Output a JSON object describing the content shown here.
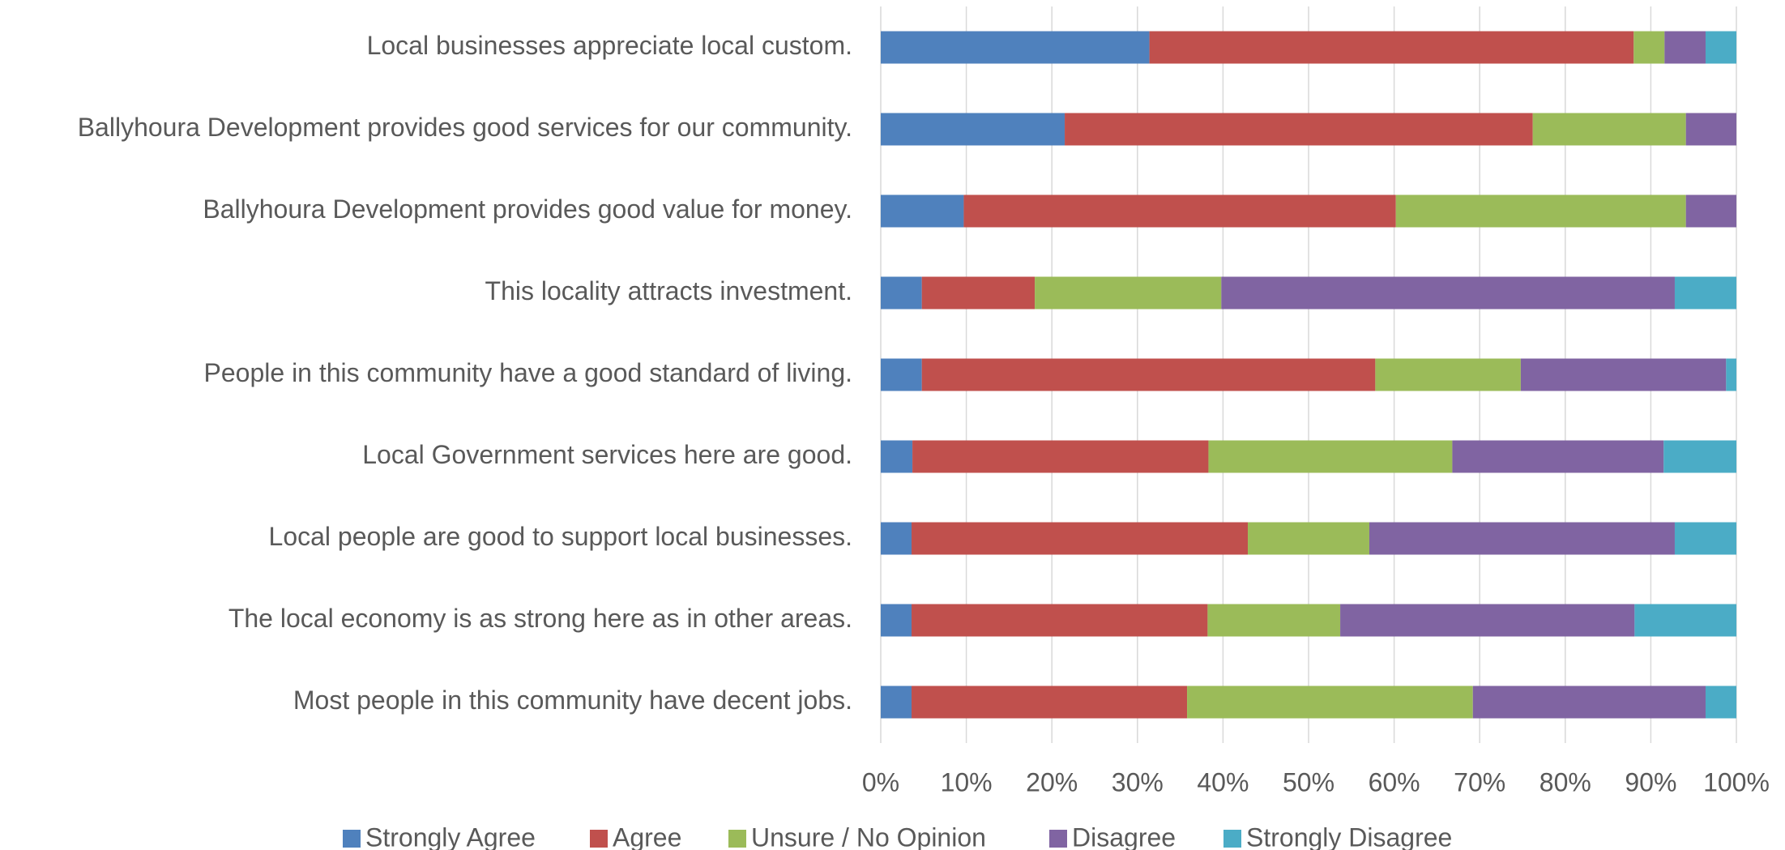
{
  "chart_data": {
    "type": "stacked_bar_horizontal",
    "categories": [
      "Local businesses appreciate local custom.",
      "Ballyhoura Development provides good services for our community.",
      "Ballyhoura Development provides good value for money.",
      "This locality attracts investment.",
      "People in this community have a good standard of living.",
      "Local Government services here are good.",
      "Local people are good to support local businesses.",
      "The local economy is as strong here as in other areas.",
      "Most people in this community have decent jobs."
    ],
    "series": [
      {
        "name": "Strongly Agree",
        "color": "#4f81bd",
        "values": [
          31.4,
          21.5,
          9.7,
          4.8,
          4.8,
          3.7,
          3.6,
          3.6,
          3.6
        ]
      },
      {
        "name": "Agree",
        "color": "#c0504d",
        "values": [
          56.6,
          54.7,
          50.5,
          13.2,
          53.0,
          34.6,
          39.3,
          34.6,
          32.2
        ]
      },
      {
        "name": "Unsure / No Opinion",
        "color": "#9bbb59",
        "values": [
          3.6,
          17.9,
          33.9,
          21.8,
          17.0,
          28.5,
          14.2,
          15.5,
          33.4
        ]
      },
      {
        "name": "Disagree",
        "color": "#8064a2",
        "values": [
          4.8,
          5.9,
          5.9,
          53.0,
          24.0,
          24.7,
          35.7,
          34.4,
          27.2
        ]
      },
      {
        "name": "Strongly Disagree",
        "color": "#4bacc6",
        "values": [
          3.6,
          0,
          0,
          7.2,
          1.2,
          8.5,
          7.2,
          11.9,
          3.6
        ]
      }
    ],
    "xlim": [
      0,
      100
    ],
    "xticks": [
      {
        "value": 0,
        "label": "0%"
      },
      {
        "value": 10,
        "label": "10%"
      },
      {
        "value": 20,
        "label": "20%"
      },
      {
        "value": 30,
        "label": "30%"
      },
      {
        "value": 40,
        "label": "40%"
      },
      {
        "value": 50,
        "label": "50%"
      },
      {
        "value": 60,
        "label": "60%"
      },
      {
        "value": 70,
        "label": "70%"
      },
      {
        "value": 80,
        "label": "80%"
      },
      {
        "value": 90,
        "label": "90%"
      },
      {
        "value": 100,
        "label": "100%"
      }
    ],
    "grid": true,
    "legend": "bottom"
  }
}
